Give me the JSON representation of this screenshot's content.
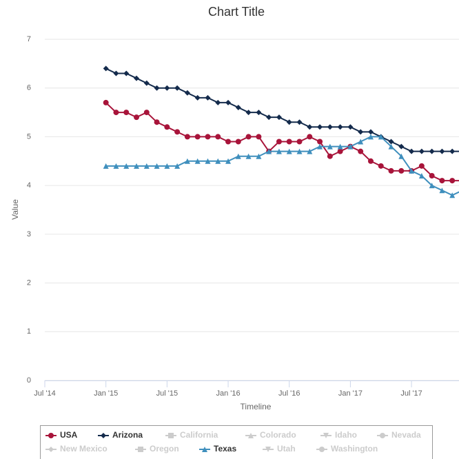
{
  "chart_data": {
    "type": "line",
    "title": "Chart Title",
    "x_label": "Timeline",
    "y_label": "Value",
    "x": [
      "2015-01",
      "2015-02",
      "2015-03",
      "2015-04",
      "2015-05",
      "2015-06",
      "2015-07",
      "2015-08",
      "2015-09",
      "2015-10",
      "2015-11",
      "2015-12",
      "2016-01",
      "2016-02",
      "2016-03",
      "2016-04",
      "2016-05",
      "2016-06",
      "2016-07",
      "2016-08",
      "2016-09",
      "2016-10",
      "2016-11",
      "2016-12",
      "2017-01",
      "2017-02",
      "2017-03",
      "2017-04",
      "2017-05",
      "2017-06",
      "2017-07",
      "2017-08",
      "2017-09",
      "2017-10",
      "2017-11",
      "2017-12"
    ],
    "xlim": [
      "2014-07",
      "2017-12"
    ],
    "xticks": [
      {
        "value": "2014-07",
        "label": "Jul '14"
      },
      {
        "value": "2015-01",
        "label": "Jan '15"
      },
      {
        "value": "2015-07",
        "label": "Jul '15"
      },
      {
        "value": "2016-01",
        "label": "Jan '16"
      },
      {
        "value": "2016-07",
        "label": "Jul '16"
      },
      {
        "value": "2017-01",
        "label": "Jan '17"
      },
      {
        "value": "2017-07",
        "label": "Jul '17"
      }
    ],
    "ylim": [
      0,
      7
    ],
    "yticks": [
      0,
      1,
      2,
      3,
      4,
      5,
      6,
      7
    ],
    "grid": true,
    "series": [
      {
        "name": "USA",
        "color": "#a8143a",
        "marker": "circle",
        "visible": true,
        "values": [
          5.7,
          5.5,
          5.5,
          5.4,
          5.5,
          5.3,
          5.2,
          5.1,
          5.0,
          5.0,
          5.0,
          5.0,
          4.9,
          4.9,
          5.0,
          5.0,
          4.7,
          4.9,
          4.9,
          4.9,
          5.0,
          4.9,
          4.6,
          4.7,
          4.8,
          4.7,
          4.5,
          4.4,
          4.3,
          4.3,
          4.3,
          4.4,
          4.2,
          4.1,
          4.1,
          4.1
        ]
      },
      {
        "name": "Arizona",
        "color": "#142b4c",
        "marker": "diamond",
        "visible": true,
        "values": [
          6.4,
          6.3,
          6.3,
          6.2,
          6.1,
          6.0,
          6.0,
          6.0,
          5.9,
          5.8,
          5.8,
          5.7,
          5.7,
          5.6,
          5.5,
          5.5,
          5.4,
          5.4,
          5.3,
          5.3,
          5.2,
          5.2,
          5.2,
          5.2,
          5.2,
          5.1,
          5.1,
          5.0,
          4.9,
          4.8,
          4.7,
          4.7,
          4.7,
          4.7,
          4.7,
          4.7
        ]
      },
      {
        "name": "California",
        "marker": "square",
        "visible": false
      },
      {
        "name": "Colorado",
        "marker": "triangle",
        "visible": false
      },
      {
        "name": "Idaho",
        "marker": "triangle-down",
        "visible": false
      },
      {
        "name": "Nevada",
        "marker": "circle",
        "visible": false
      },
      {
        "name": "New Mexico",
        "marker": "diamond",
        "visible": false
      },
      {
        "name": "Oregon",
        "marker": "square",
        "visible": false
      },
      {
        "name": "Texas",
        "color": "#3f8fbd",
        "marker": "triangle",
        "visible": true,
        "values": [
          4.4,
          4.4,
          4.4,
          4.4,
          4.4,
          4.4,
          4.4,
          4.4,
          4.5,
          4.5,
          4.5,
          4.5,
          4.5,
          4.6,
          4.6,
          4.6,
          4.7,
          4.7,
          4.7,
          4.7,
          4.7,
          4.8,
          4.8,
          4.8,
          4.8,
          4.9,
          5.0,
          5.0,
          4.8,
          4.6,
          4.3,
          4.2,
          4.0,
          3.9,
          3.8,
          3.9
        ]
      },
      {
        "name": "Utah",
        "marker": "triangle-down",
        "visible": false
      },
      {
        "name": "Washington",
        "marker": "circle",
        "visible": false
      }
    ]
  }
}
